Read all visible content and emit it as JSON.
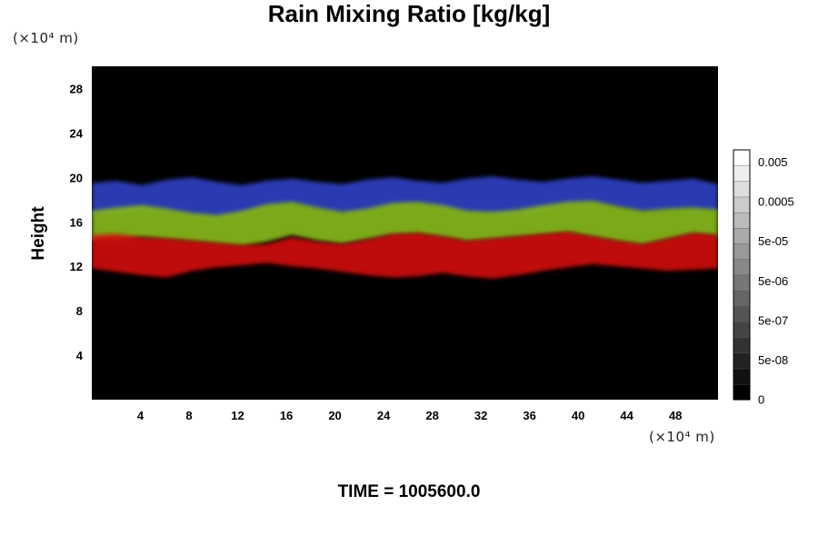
{
  "chart_data": {
    "type": "heatmap",
    "title": "Rain Mixing Ratio [kg/kg]",
    "ylabel": "Height",
    "xlabel": "",
    "x_unit": "(×10⁴ m)",
    "y_unit": "(×10⁴ m)",
    "xlim": [
      0,
      51.5
    ],
    "ylim": [
      0,
      30
    ],
    "x_ticks": [
      4,
      8,
      12,
      16,
      20,
      24,
      28,
      32,
      36,
      40,
      44,
      48
    ],
    "y_ticks": [
      4,
      8,
      12,
      16,
      20,
      24,
      28
    ],
    "grid": false,
    "background_color": "#000000",
    "layers": [
      {
        "color": "#2e3fc0",
        "bottom_km": [
          16.5,
          16.7,
          17.0,
          16.8,
          16.4,
          16.2,
          16.6,
          17.2,
          17.5,
          17.0,
          16.6,
          16.8,
          17.3,
          17.5,
          17.1,
          16.7,
          16.5,
          16.6,
          17.0,
          17.4,
          17.6,
          17.2,
          16.8,
          16.9,
          17.0,
          16.8
        ],
        "top_km": [
          19.5,
          19.7,
          19.3,
          19.8,
          20.0,
          19.6,
          19.3,
          19.7,
          19.9,
          19.6,
          19.4,
          19.8,
          20.0,
          19.7,
          19.5,
          19.9,
          20.1,
          19.8,
          19.6,
          19.9,
          20.1,
          19.8,
          19.5,
          19.7,
          19.9,
          19.4
        ]
      },
      {
        "color": "#86b81c",
        "bottom_km": [
          14.3,
          14.4,
          14.6,
          14.4,
          14.2,
          14.0,
          13.8,
          14.2,
          14.8,
          14.3,
          14.0,
          14.4,
          14.8,
          14.9,
          14.6,
          14.2,
          14.4,
          14.6,
          14.8,
          15.0,
          14.6,
          14.2,
          13.9,
          14.4,
          14.9,
          14.7
        ],
        "top_km": [
          17.0,
          17.3,
          17.5,
          17.2,
          16.8,
          16.6,
          17.0,
          17.6,
          17.8,
          17.3,
          16.9,
          17.2,
          17.7,
          17.8,
          17.5,
          17.0,
          16.9,
          17.1,
          17.5,
          17.8,
          17.9,
          17.4,
          17.0,
          17.2,
          17.3,
          17.1
        ]
      },
      {
        "color": "#d01010",
        "bottom_km": [
          11.8,
          11.5,
          11.2,
          11.0,
          11.6,
          11.9,
          12.1,
          12.3,
          12.0,
          11.8,
          11.5,
          11.2,
          11.0,
          11.1,
          11.4,
          11.1,
          10.9,
          11.2,
          11.6,
          11.9,
          12.2,
          12.0,
          11.8,
          11.6,
          11.7,
          11.8
        ],
        "top_km": [
          14.8,
          14.9,
          14.6,
          14.5,
          14.3,
          14.1,
          13.9,
          14.0,
          14.6,
          14.2,
          14.0,
          14.4,
          14.9,
          15.0,
          14.7,
          14.3,
          14.5,
          14.7,
          14.9,
          15.1,
          14.7,
          14.3,
          14.0,
          14.5,
          15.0,
          14.8
        ]
      }
    ],
    "colorbar": {
      "labels": [
        "0.005",
        "0.0005",
        "5e-05",
        "5e-06",
        "5e-07",
        "5e-08",
        "0"
      ],
      "levels": 16,
      "color_range": [
        "#000000",
        "#ffffff"
      ]
    },
    "footer": "TIME = 1005600.0"
  }
}
